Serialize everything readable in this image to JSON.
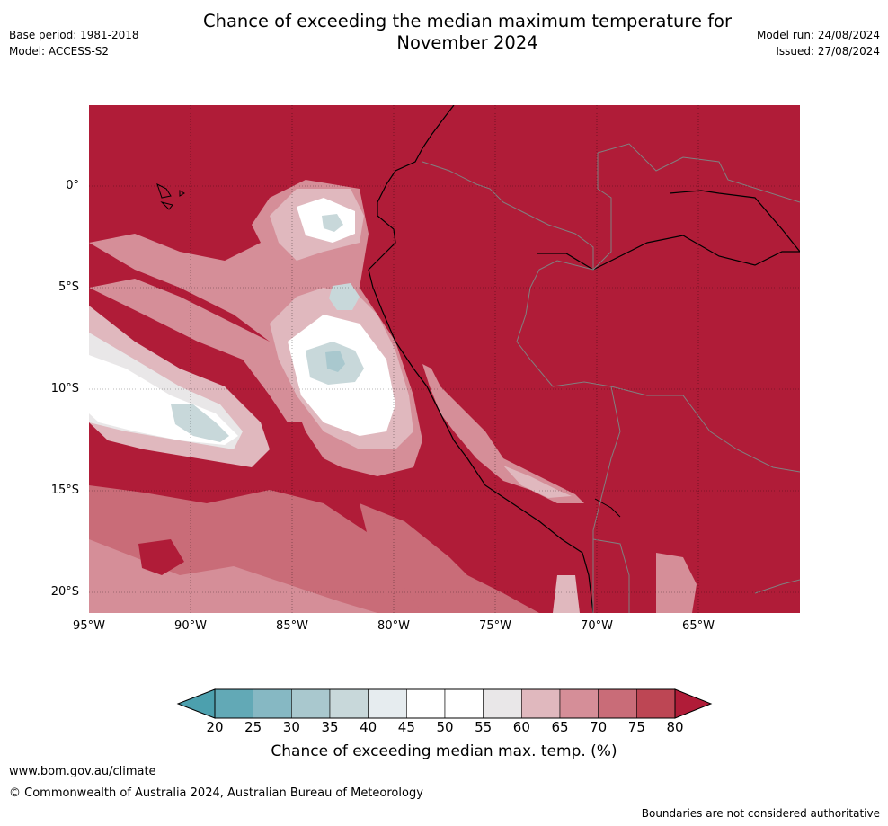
{
  "title_line1": "Chance of exceeding the median maximum temperature for",
  "title_line2": "November 2024",
  "meta_left": {
    "base_period": "Base period: 1981-2018",
    "model": "Model: ACCESS-S2"
  },
  "meta_right": {
    "model_run": "Model run: 24/08/2024",
    "issued": "Issued: 27/08/2024"
  },
  "map": {
    "lat_ticks": [
      "0°",
      "5°S",
      "10°S",
      "15°S",
      "20°S"
    ],
    "lon_ticks": [
      "95°W",
      "90°W",
      "85°W",
      "80°W",
      "75°W",
      "70°W",
      "65°W"
    ],
    "background_color": "#b01c38"
  },
  "colorbar": {
    "ticks": [
      "20",
      "25",
      "30",
      "35",
      "40",
      "45",
      "50",
      "55",
      "60",
      "65",
      "70",
      "75",
      "80"
    ],
    "colors": [
      "#62a9b6",
      "#86b8c3",
      "#a9c8ce",
      "#c8d8da",
      "#e6ecef",
      "#ffffff",
      "#ffffff",
      "#e9e7e8",
      "#e0b8be",
      "#d58e98",
      "#c96c78",
      "#bd4654"
    ],
    "low_extend_color": "#4ca0ae",
    "high_extend_color": "#b01c38",
    "label": "Chance of exceeding median max. temp. (%)"
  },
  "footer": {
    "url": "www.bom.gov.au/climate",
    "copyright": "© Commonwealth of Australia 2024, Australian Bureau of Meteorology",
    "disclaimer": "Boundaries are not considered authoritative"
  }
}
